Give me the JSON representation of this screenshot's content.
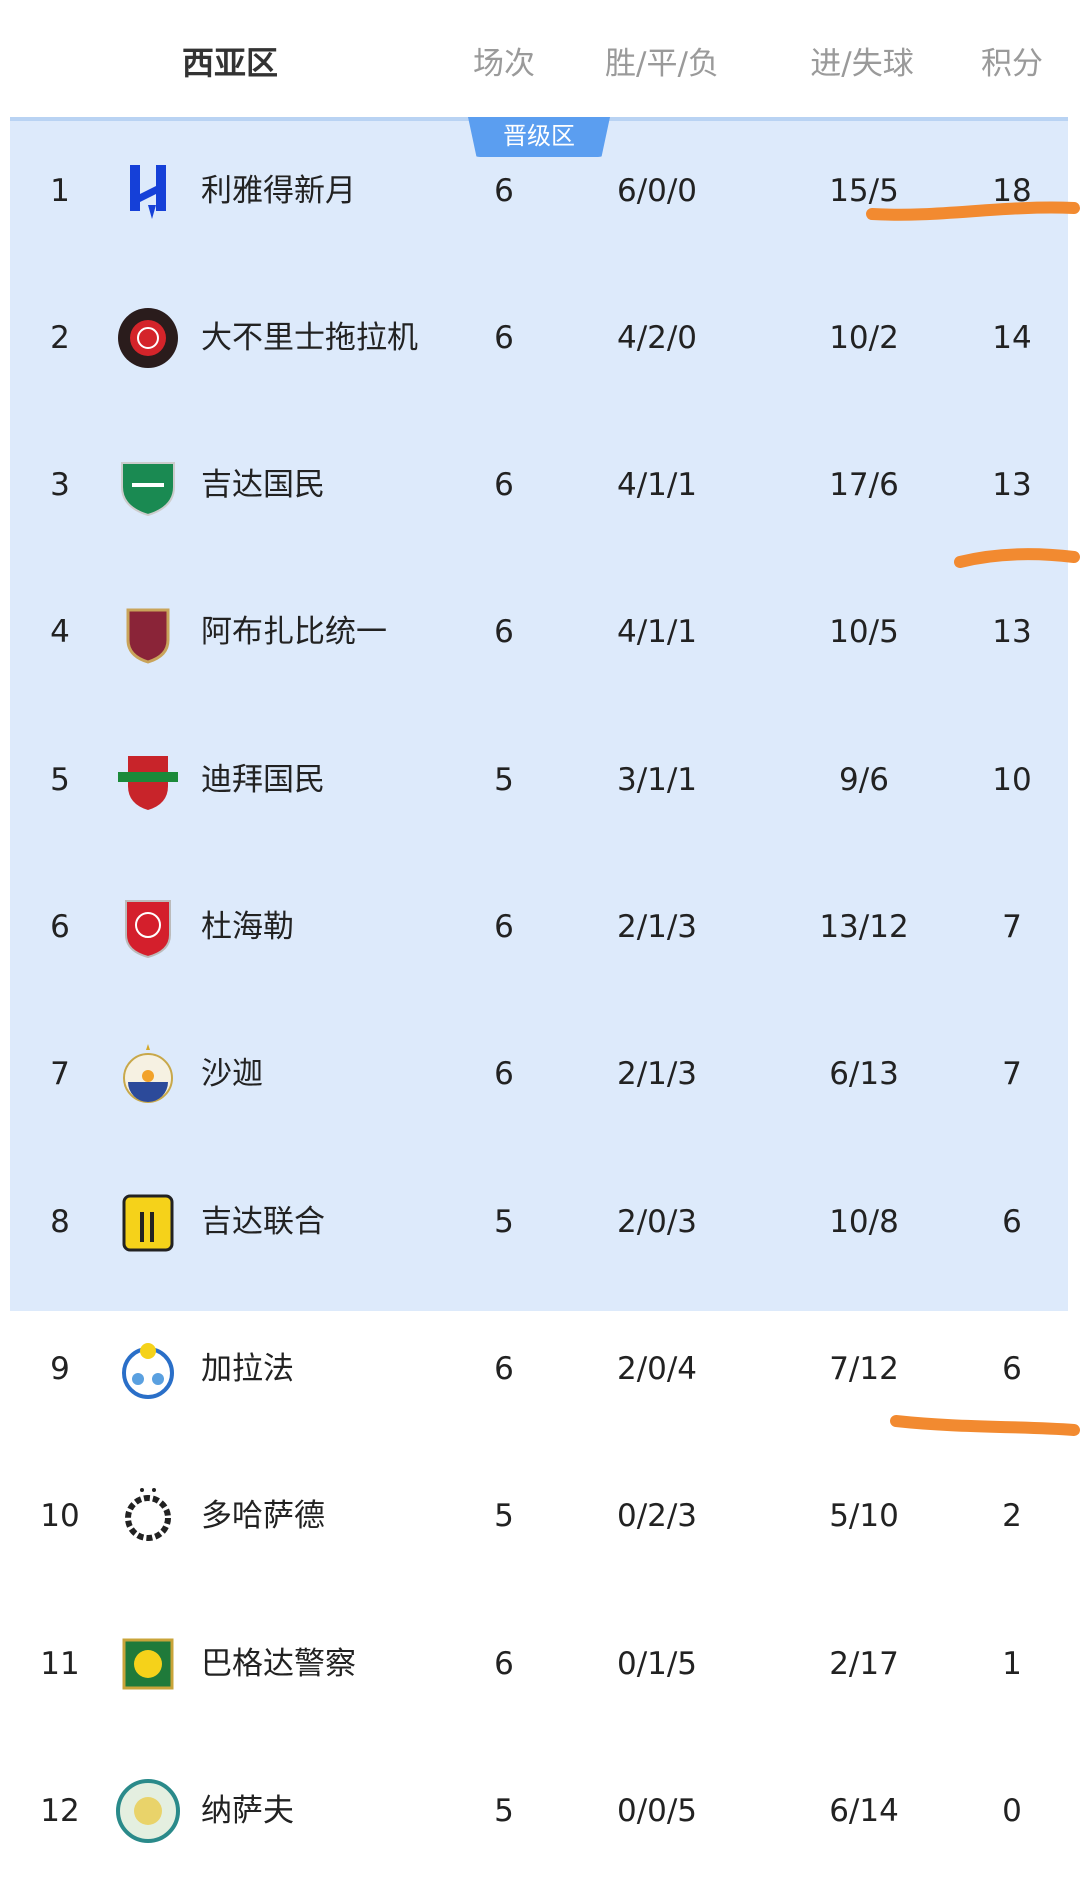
{
  "header": {
    "title": "西亚区",
    "col_games": "场次",
    "col_wdl": "胜/平/负",
    "col_goals": "进/失球",
    "col_points": "积分"
  },
  "zone_badge": "晋级区",
  "colors": {
    "zone_bg": "#ddeafb",
    "badge": "#5b9ef0",
    "annotation": "#f28a30"
  },
  "rows": [
    {
      "rank": "1",
      "team": "利雅得新月",
      "logo": "al-hilal-logo",
      "games": "6",
      "wdl": "6/0/0",
      "goals": "15/5",
      "points": "18"
    },
    {
      "rank": "2",
      "team": "大不里士拖拉机",
      "logo": "tractor-logo",
      "games": "6",
      "wdl": "4/2/0",
      "goals": "10/2",
      "points": "14"
    },
    {
      "rank": "3",
      "team": "吉达国民",
      "logo": "al-ahli-jeddah-logo",
      "games": "6",
      "wdl": "4/1/1",
      "goals": "17/6",
      "points": "13"
    },
    {
      "rank": "4",
      "team": "阿布扎比统一",
      "logo": "al-wahda-logo",
      "games": "6",
      "wdl": "4/1/1",
      "goals": "10/5",
      "points": "13"
    },
    {
      "rank": "5",
      "team": "迪拜国民",
      "logo": "shabab-al-ahli-logo",
      "games": "5",
      "wdl": "3/1/1",
      "goals": "9/6",
      "points": "10"
    },
    {
      "rank": "6",
      "team": "杜海勒",
      "logo": "al-duhail-logo",
      "games": "6",
      "wdl": "2/1/3",
      "goals": "13/12",
      "points": "7"
    },
    {
      "rank": "7",
      "team": "沙迦",
      "logo": "sharjah-logo",
      "games": "6",
      "wdl": "2/1/3",
      "goals": "6/13",
      "points": "7"
    },
    {
      "rank": "8",
      "team": "吉达联合",
      "logo": "al-ittihad-logo",
      "games": "5",
      "wdl": "2/0/3",
      "goals": "10/8",
      "points": "6"
    },
    {
      "rank": "9",
      "team": "加拉法",
      "logo": "al-gharafa-logo",
      "games": "6",
      "wdl": "2/0/4",
      "goals": "7/12",
      "points": "6"
    },
    {
      "rank": "10",
      "team": "多哈萨德",
      "logo": "al-sadd-logo",
      "games": "5",
      "wdl": "0/2/3",
      "goals": "5/10",
      "points": "2"
    },
    {
      "rank": "11",
      "team": "巴格达警察",
      "logo": "al-shorta-logo",
      "games": "6",
      "wdl": "0/1/5",
      "goals": "2/17",
      "points": "1"
    },
    {
      "rank": "12",
      "team": "纳萨夫",
      "logo": "nasaf-logo",
      "games": "5",
      "wdl": "0/0/5",
      "goals": "6/14",
      "points": "0"
    }
  ]
}
